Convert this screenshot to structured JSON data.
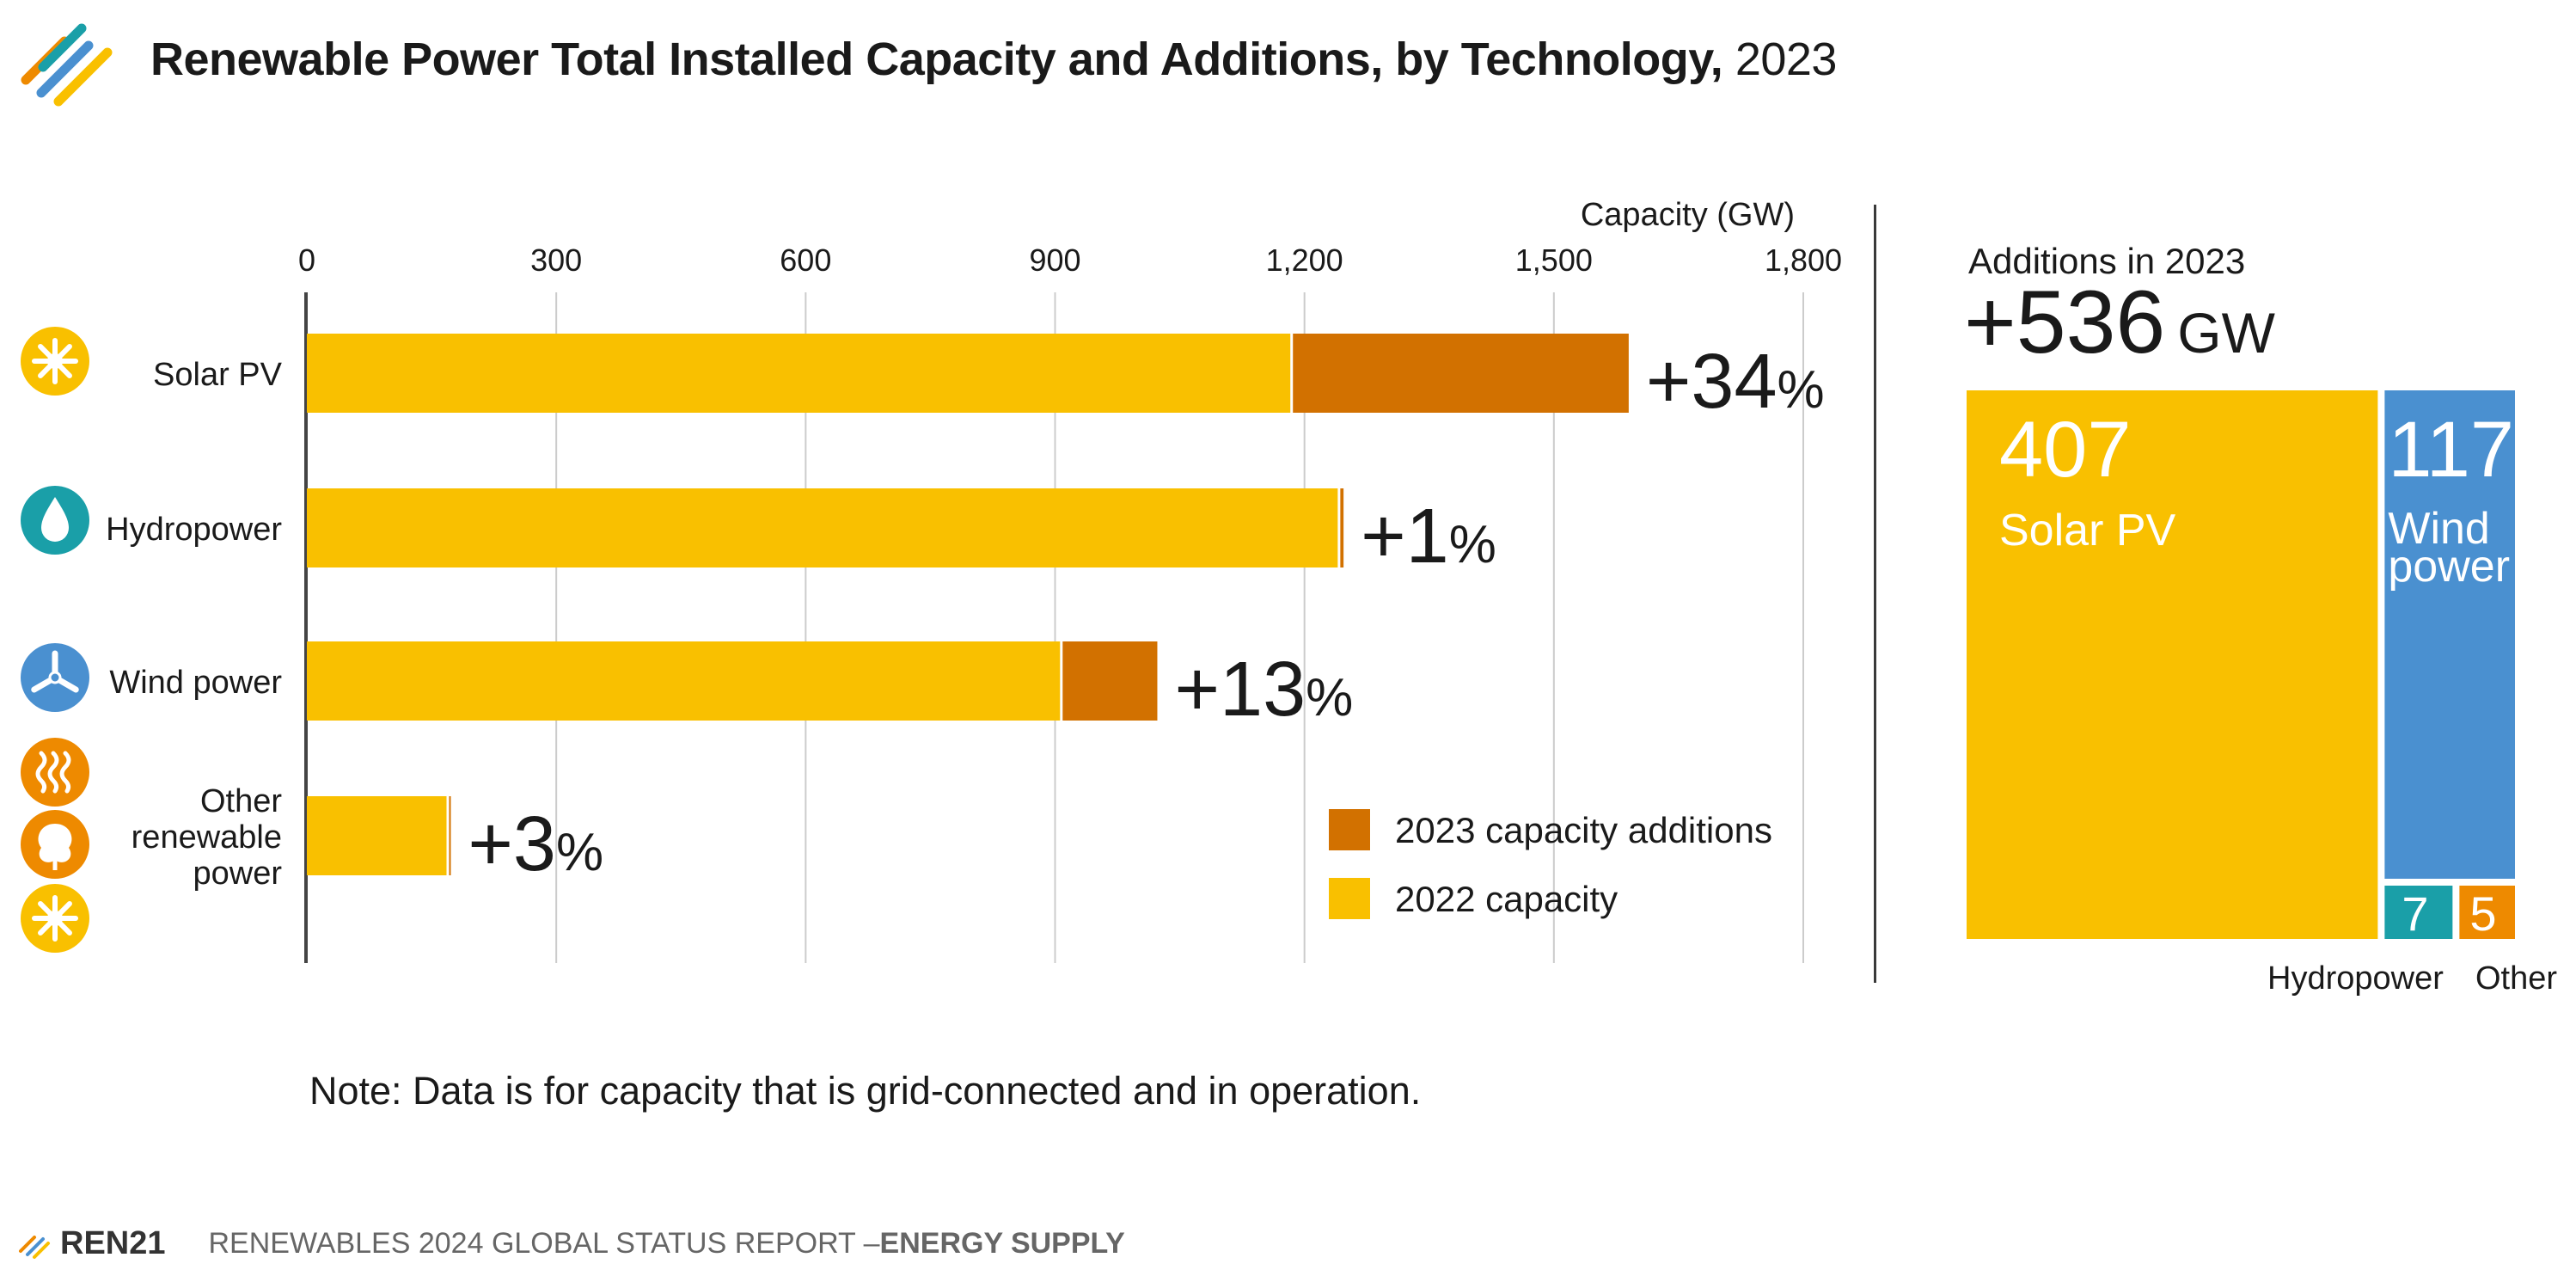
{
  "title": {
    "main": "Renewable Power Total Installed Capacity and Additions, by Technology,",
    "year": "2023"
  },
  "colors": {
    "base": "#F9C000",
    "additions": "#D27100",
    "solar": "#F9C000",
    "wind": "#4A90D0",
    "hydro": "#1A9FA8",
    "other": "#EE8A00",
    "axis": "#444444",
    "grid": "#cccccc"
  },
  "chart_data": [
    {
      "type": "bar",
      "orientation": "horizontal",
      "stacked": true,
      "xlabel": "Capacity (GW)",
      "xlim": [
        0,
        1800
      ],
      "ticks": [
        "0",
        "300",
        "600",
        "900",
        "1,200",
        "1,500",
        "1,800"
      ],
      "tick_values": [
        0,
        300,
        600,
        900,
        1200,
        1500,
        1800
      ],
      "categories": [
        {
          "label": [
            "Solar PV"
          ],
          "icon": "sun-icon"
        },
        {
          "label": [
            "Hydropower"
          ],
          "icon": "water-drop-icon"
        },
        {
          "label": [
            "Wind power"
          ],
          "icon": "wind-turbine-icon"
        },
        {
          "label": [
            "Other",
            "renewable",
            "power"
          ],
          "icon": "other-renewables-icons"
        }
      ],
      "series": [
        {
          "name": "2022 capacity",
          "values": [
            1183,
            1240,
            906,
            168
          ]
        },
        {
          "name": "2023 capacity additions",
          "values": [
            407,
            7,
            117,
            5
          ]
        }
      ],
      "growth_labels": [
        {
          "num": "+34",
          "pct": "%"
        },
        {
          "num": "+1",
          "pct": "%"
        },
        {
          "num": "+13",
          "pct": "%"
        },
        {
          "num": "+3",
          "pct": "%"
        }
      ],
      "legend": [
        "2023 capacity additions",
        "2022 capacity"
      ]
    },
    {
      "type": "treemap",
      "title": "Additions in 2023",
      "total": {
        "num": "+536",
        "unit": "GW"
      },
      "items": [
        {
          "name": "Solar PV",
          "value": 407
        },
        {
          "name": "Wind power",
          "value": 117
        },
        {
          "name": "Hydropower",
          "value": 7
        },
        {
          "name": "Other",
          "value": 5
        }
      ]
    }
  ],
  "note": "Note: Data is for capacity that is grid-connected and in operation.",
  "footer": {
    "brand": "REN21",
    "report": "RENEWABLES 2024 GLOBAL STATUS REPORT – ",
    "section": "ENERGY SUPPLY"
  }
}
